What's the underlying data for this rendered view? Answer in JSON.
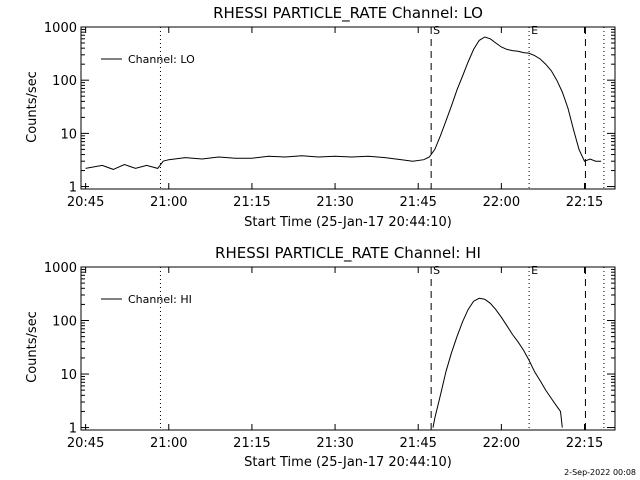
{
  "footer_stamp": "2-Sep-2022 00:08",
  "colors": {
    "background": "#ffffff",
    "foreground": "#000000"
  },
  "chart_data": [
    {
      "type": "line",
      "title": "RHESSI PARTICLE_RATE Channel: LO",
      "xlabel": "Start Time (25-Jan-17 20:44:10)",
      "ylabel": "Counts/sec",
      "y_scale": "log",
      "xlim": [
        "20:44:10",
        "22:20:30"
      ],
      "ylim": [
        0.9,
        1000
      ],
      "x_ticks": [
        "20:45",
        "21:00",
        "21:15",
        "21:30",
        "21:45",
        "22:00",
        "22:15"
      ],
      "y_ticks": [
        "1",
        "10",
        "100",
        "1000"
      ],
      "legend": "top-left",
      "markers": [
        {
          "time": "20:58:30",
          "style": "dotted",
          "label": ""
        },
        {
          "time": "21:47:20",
          "style": "dashed",
          "label": "S"
        },
        {
          "time": "22:05:00",
          "style": "dotted",
          "label": "E"
        },
        {
          "time": "22:15:10",
          "style": "dashed",
          "label": ""
        },
        {
          "time": "22:18:30",
          "style": "dotted",
          "label": ""
        }
      ],
      "series": [
        {
          "name": "Channel: LO",
          "x": [
            "20:45:00",
            "20:48:00",
            "20:50:00",
            "20:52:00",
            "20:54:00",
            "20:56:00",
            "20:58:00",
            "20:59:00",
            "21:00:00",
            "21:03:00",
            "21:06:00",
            "21:09:00",
            "21:12:00",
            "21:15:00",
            "21:18:00",
            "21:21:00",
            "21:24:00",
            "21:27:00",
            "21:30:00",
            "21:33:00",
            "21:36:00",
            "21:39:00",
            "21:42:00",
            "21:44:00",
            "21:46:00",
            "21:47:00",
            "21:48:00",
            "21:49:00",
            "21:50:00",
            "21:51:00",
            "21:52:00",
            "21:53:00",
            "21:54:00",
            "21:55:00",
            "21:56:00",
            "21:57:00",
            "21:58:00",
            "21:59:00",
            "22:00:00",
            "22:01:00",
            "22:02:00",
            "22:03:00",
            "22:04:00",
            "22:05:00",
            "22:06:00",
            "22:07:00",
            "22:08:00",
            "22:09:00",
            "22:10:00",
            "22:11:00",
            "22:12:00",
            "22:13:00",
            "22:14:00",
            "22:15:00",
            "22:16:00",
            "22:17:00",
            "22:18:00"
          ],
          "y": [
            2.2,
            2.5,
            2.1,
            2.6,
            2.2,
            2.5,
            2.2,
            3.0,
            3.2,
            3.5,
            3.3,
            3.6,
            3.4,
            3.4,
            3.7,
            3.6,
            3.8,
            3.6,
            3.7,
            3.6,
            3.7,
            3.5,
            3.2,
            3.0,
            3.2,
            3.6,
            5,
            9,
            17,
            33,
            66,
            120,
            220,
            380,
            560,
            650,
            600,
            500,
            420,
            380,
            360,
            350,
            330,
            320,
            290,
            250,
            200,
            150,
            100,
            60,
            30,
            12,
            5,
            3.0,
            3.3,
            3.0,
            3.0
          ]
        }
      ]
    },
    {
      "type": "line",
      "title": "RHESSI PARTICLE_RATE Channel: HI",
      "xlabel": "Start Time (25-Jan-17 20:44:10)",
      "ylabel": "Counts/sec",
      "y_scale": "log",
      "xlim": [
        "20:44:10",
        "22:20:30"
      ],
      "ylim": [
        0.9,
        1000
      ],
      "x_ticks": [
        "20:45",
        "21:00",
        "21:15",
        "21:30",
        "21:45",
        "22:00",
        "22:15"
      ],
      "y_ticks": [
        "1",
        "10",
        "100",
        "1000"
      ],
      "legend": "top-left",
      "markers": [
        {
          "time": "20:58:30",
          "style": "dotted",
          "label": ""
        },
        {
          "time": "21:47:20",
          "style": "dashed",
          "label": "S"
        },
        {
          "time": "22:05:00",
          "style": "dotted",
          "label": "E"
        },
        {
          "time": "22:15:10",
          "style": "dashed",
          "label": ""
        },
        {
          "time": "22:18:30",
          "style": "dotted",
          "label": ""
        }
      ],
      "series": [
        {
          "name": "Channel: HI",
          "x": [
            "21:47:40",
            "21:48:00",
            "21:49:00",
            "21:50:00",
            "21:51:00",
            "21:52:00",
            "21:53:00",
            "21:54:00",
            "21:55:00",
            "21:56:00",
            "21:57:00",
            "21:58:00",
            "21:59:00",
            "22:00:00",
            "22:01:00",
            "22:02:00",
            "22:03:00",
            "22:04:00",
            "22:05:00",
            "22:06:00",
            "22:07:00",
            "22:08:00",
            "22:09:00",
            "22:10:00",
            "22:10:40",
            "22:11:00"
          ],
          "y": [
            1.0,
            1.5,
            4,
            11,
            25,
            50,
            95,
            160,
            230,
            260,
            250,
            210,
            160,
            115,
            80,
            55,
            40,
            28,
            18,
            11,
            7.5,
            5,
            3.5,
            2.5,
            2.0,
            1.0
          ]
        }
      ]
    }
  ]
}
